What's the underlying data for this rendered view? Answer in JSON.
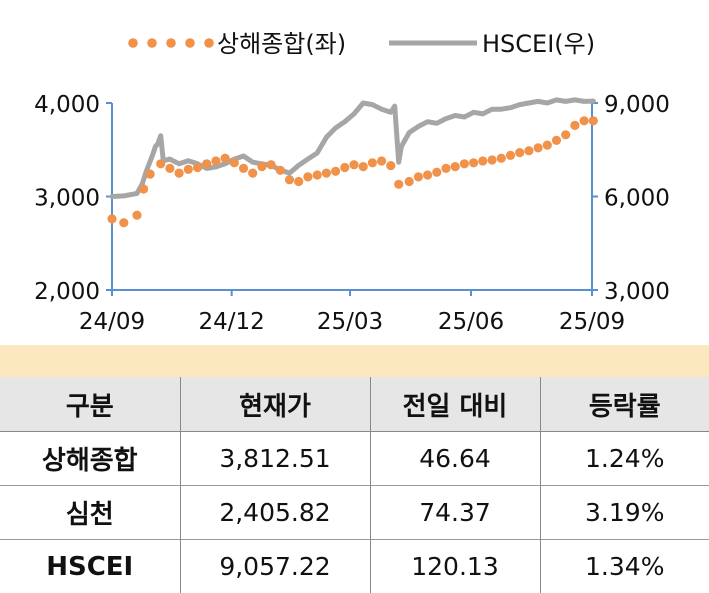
{
  "chart_data": {
    "type": "line",
    "legend": {
      "position": "top",
      "items": [
        {
          "label": "상해종합(좌)",
          "style": "dotted",
          "color": "#f0924a"
        },
        {
          "label": "HSCEI(우)",
          "style": "solid",
          "color": "#a6a6a6"
        }
      ]
    },
    "x_ticks": [
      "24/09",
      "24/12",
      "25/03",
      "25/06",
      "25/09"
    ],
    "y_left": {
      "ticks": [
        "2,000",
        "3,000",
        "4,000"
      ],
      "range": [
        2000,
        4000
      ]
    },
    "y_right": {
      "ticks": [
        "3,000",
        "6,000",
        "9,000"
      ],
      "range": [
        3000,
        9000
      ]
    },
    "axis_color": "#5b8fd4",
    "series": [
      {
        "name": "상해종합(좌)",
        "axis": "left",
        "color": "#f0924a",
        "x": [
          "24/09/01",
          "24/09/10",
          "24/09/20",
          "24/09/25",
          "24/09/30",
          "24/10/08",
          "24/10/15",
          "24/10/22",
          "24/10/29",
          "24/11/05",
          "24/11/12",
          "24/11/19",
          "24/11/26",
          "24/12/03",
          "24/12/10",
          "24/12/17",
          "24/12/24",
          "24/12/31",
          "25/01/07",
          "25/01/14",
          "25/01/21",
          "25/01/28",
          "25/02/04",
          "25/02/11",
          "25/02/18",
          "25/02/25",
          "25/03/04",
          "25/03/11",
          "25/03/18",
          "25/03/25",
          "25/04/01",
          "25/04/07",
          "25/04/15",
          "25/04/22",
          "25/04/29",
          "25/05/06",
          "25/05/13",
          "25/05/20",
          "25/05/27",
          "25/06/03",
          "25/06/10",
          "25/06/17",
          "25/06/24",
          "25/07/01",
          "25/07/08",
          "25/07/15",
          "25/07/22",
          "25/07/29",
          "25/08/05",
          "25/08/12",
          "25/08/19",
          "25/08/26",
          "25/09/02"
        ],
        "values": [
          2760,
          2720,
          2800,
          3080,
          3240,
          3350,
          3300,
          3250,
          3290,
          3310,
          3350,
          3380,
          3410,
          3360,
          3300,
          3250,
          3320,
          3340,
          3280,
          3180,
          3160,
          3210,
          3230,
          3250,
          3270,
          3310,
          3340,
          3320,
          3360,
          3380,
          3330,
          3130,
          3160,
          3210,
          3230,
          3260,
          3300,
          3320,
          3350,
          3360,
          3380,
          3390,
          3410,
          3440,
          3470,
          3490,
          3520,
          3550,
          3600,
          3660,
          3760,
          3810,
          3810
        ]
      },
      {
        "name": "HSCEI(우)",
        "axis": "right",
        "color": "#a6a6a6",
        "x": [
          "24/09/01",
          "24/09/10",
          "24/09/20",
          "24/09/24",
          "24/09/27",
          "24/10/02",
          "24/10/04",
          "24/10/06",
          "24/10/08",
          "24/10/10",
          "24/10/15",
          "24/10/22",
          "24/10/29",
          "24/11/05",
          "24/11/12",
          "24/11/19",
          "24/11/26",
          "24/12/03",
          "24/12/10",
          "24/12/17",
          "24/12/24",
          "24/12/31",
          "25/01/07",
          "25/01/14",
          "25/01/21",
          "25/01/28",
          "25/02/04",
          "25/02/11",
          "25/02/18",
          "25/02/25",
          "25/03/04",
          "25/03/11",
          "25/03/18",
          "25/03/25",
          "25/04/01",
          "25/04/04",
          "25/04/07",
          "25/04/09",
          "25/04/15",
          "25/04/22",
          "25/04/29",
          "25/05/06",
          "25/05/13",
          "25/05/20",
          "25/05/27",
          "25/06/03",
          "25/06/10",
          "25/06/17",
          "25/06/24",
          "25/07/01",
          "25/07/08",
          "25/07/15",
          "25/07/22",
          "25/07/29",
          "25/08/05",
          "25/08/12",
          "25/08/19",
          "25/08/26",
          "25/09/02"
        ],
        "values": [
          6000,
          6020,
          6100,
          6400,
          6800,
          7350,
          7600,
          7700,
          7950,
          7150,
          7200,
          7050,
          7150,
          7050,
          6900,
          6950,
          7050,
          7200,
          7300,
          7100,
          7050,
          7000,
          6850,
          6750,
          7000,
          7200,
          7400,
          7900,
          8200,
          8400,
          8650,
          9000,
          8950,
          8800,
          8700,
          8900,
          7100,
          7600,
          8050,
          8250,
          8400,
          8350,
          8500,
          8600,
          8550,
          8700,
          8650,
          8800,
          8800,
          8850,
          8950,
          9000,
          9050,
          9000,
          9100,
          9050,
          9100,
          9050,
          9060
        ]
      }
    ]
  },
  "table": {
    "headers": [
      "구분",
      "현재가",
      "전일 대비",
      "등락률"
    ],
    "rows": [
      {
        "name": "상해종합",
        "price": "3,812.51",
        "change": "46.64",
        "rate": "1.24%"
      },
      {
        "name": "심천",
        "price": "2,405.82",
        "change": "74.37",
        "rate": "3.19%"
      },
      {
        "name": "HSCEI",
        "price": "9,057.22",
        "change": "120.13",
        "rate": "1.34%"
      }
    ]
  }
}
